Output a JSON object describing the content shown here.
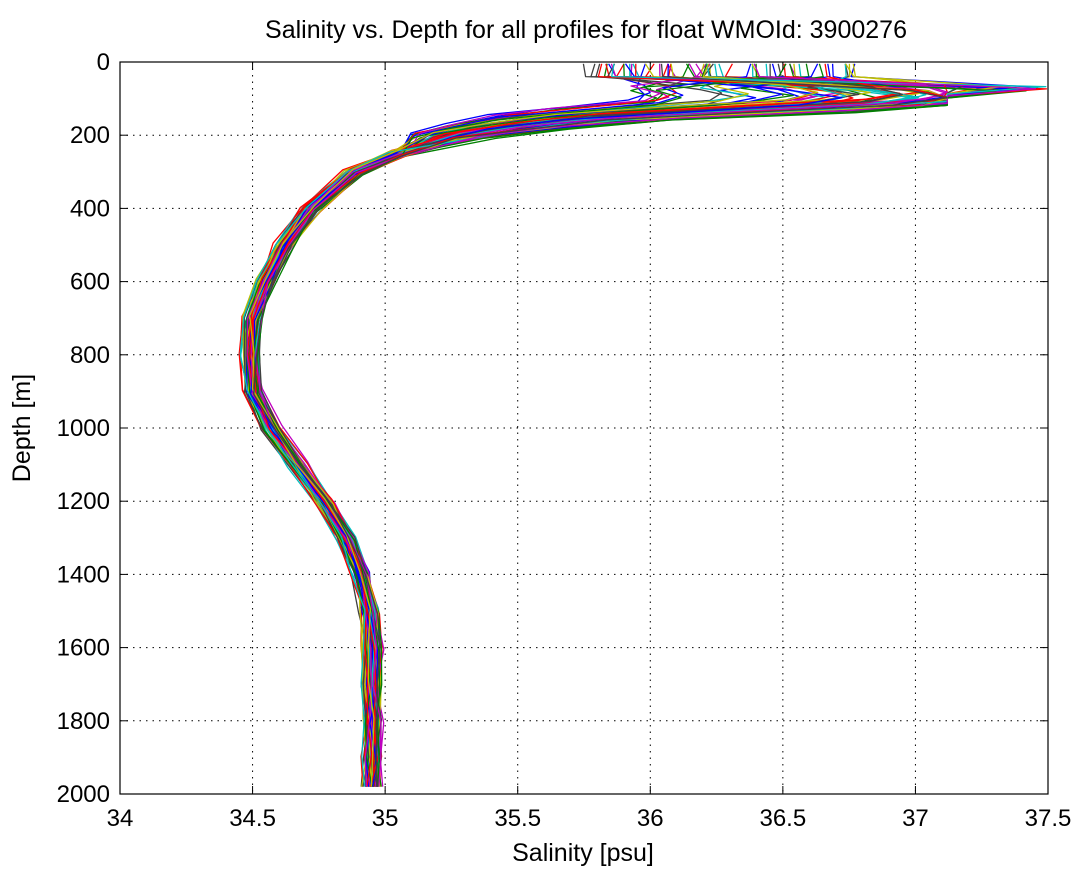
{
  "chart_data": {
    "type": "line",
    "title": "Salinity vs. Depth for all profiles for float WMOId: 3900276",
    "xlabel": "Salinity [psu]",
    "ylabel": "Depth [m]",
    "xlim": [
      34,
      37.5
    ],
    "ylim": [
      0,
      2000
    ],
    "y_reversed": true,
    "grid": true,
    "x_ticks": [
      "34",
      "34.5",
      "35",
      "35.5",
      "36",
      "36.5",
      "37",
      "37.5"
    ],
    "y_ticks": [
      "0",
      "200",
      "400",
      "600",
      "800",
      "1000",
      "1200",
      "1400",
      "1600",
      "1800",
      "2000"
    ],
    "colors": [
      "#0000ff",
      "#008000",
      "#ff0000",
      "#00bfbf",
      "#bf00bf",
      "#bfbf00",
      "#404040"
    ],
    "profile_count": 70,
    "representative_profile": {
      "depth": [
        5,
        40,
        70,
        90,
        110,
        130,
        150,
        175,
        200,
        250,
        300,
        400,
        500,
        600,
        700,
        800,
        900,
        1000,
        1100,
        1200,
        1300,
        1400,
        1500,
        1600,
        1700,
        1800,
        1900,
        1980
      ],
      "salinity": [
        36.2,
        36.3,
        36.7,
        36.85,
        36.7,
        36.2,
        35.75,
        35.45,
        35.25,
        35.05,
        34.88,
        34.72,
        34.62,
        34.55,
        34.5,
        34.49,
        34.5,
        34.57,
        34.67,
        34.77,
        34.85,
        34.91,
        34.94,
        34.95,
        34.95,
        34.95,
        34.95,
        34.95
      ]
    }
  }
}
